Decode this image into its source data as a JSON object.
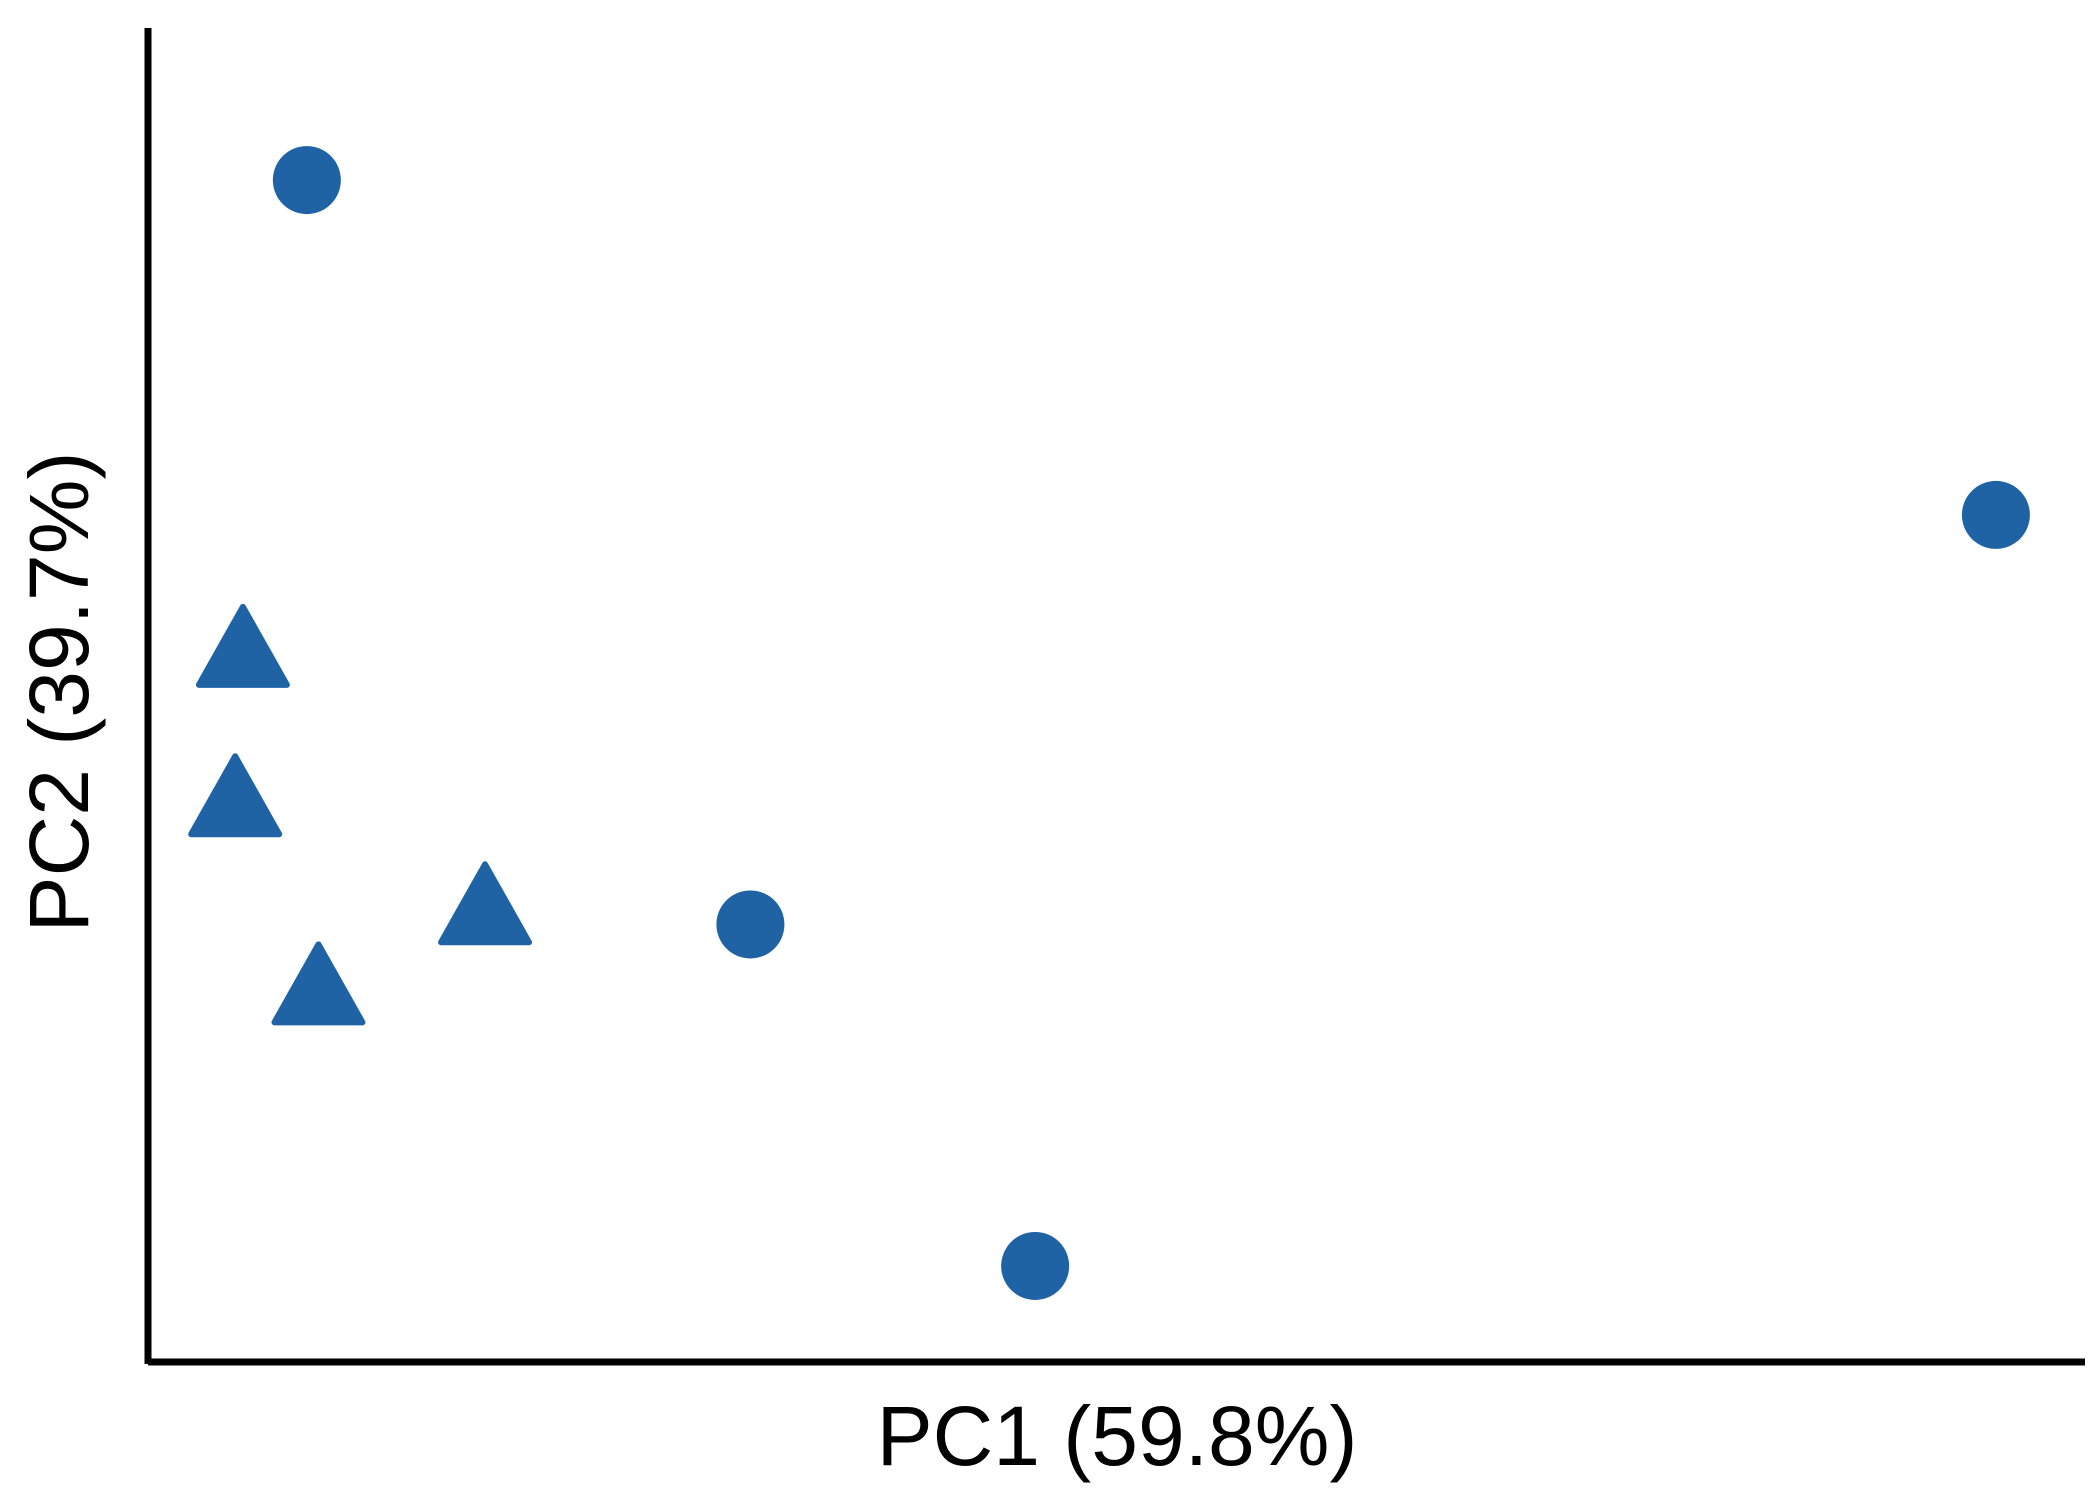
{
  "chart_data": {
    "type": "scatter",
    "xlabel": "PC1 (59.8%)",
    "ylabel": "PC2 (39.7%)",
    "xlim": [
      0,
      100
    ],
    "ylim": [
      0,
      100
    ],
    "grid": false,
    "color": "#1f63a5",
    "points": [
      {
        "x": 8.2,
        "y": 88.6,
        "shape": "circle"
      },
      {
        "x": 95.4,
        "y": 63.5,
        "shape": "circle"
      },
      {
        "x": 31.1,
        "y": 32.8,
        "shape": "circle"
      },
      {
        "x": 45.8,
        "y": 7.2,
        "shape": "circle"
      },
      {
        "x": 4.9,
        "y": 53.1,
        "shape": "triangle"
      },
      {
        "x": 4.5,
        "y": 41.9,
        "shape": "triangle"
      },
      {
        "x": 17.4,
        "y": 33.8,
        "shape": "triangle"
      },
      {
        "x": 8.8,
        "y": 27.8,
        "shape": "triangle"
      }
    ]
  }
}
